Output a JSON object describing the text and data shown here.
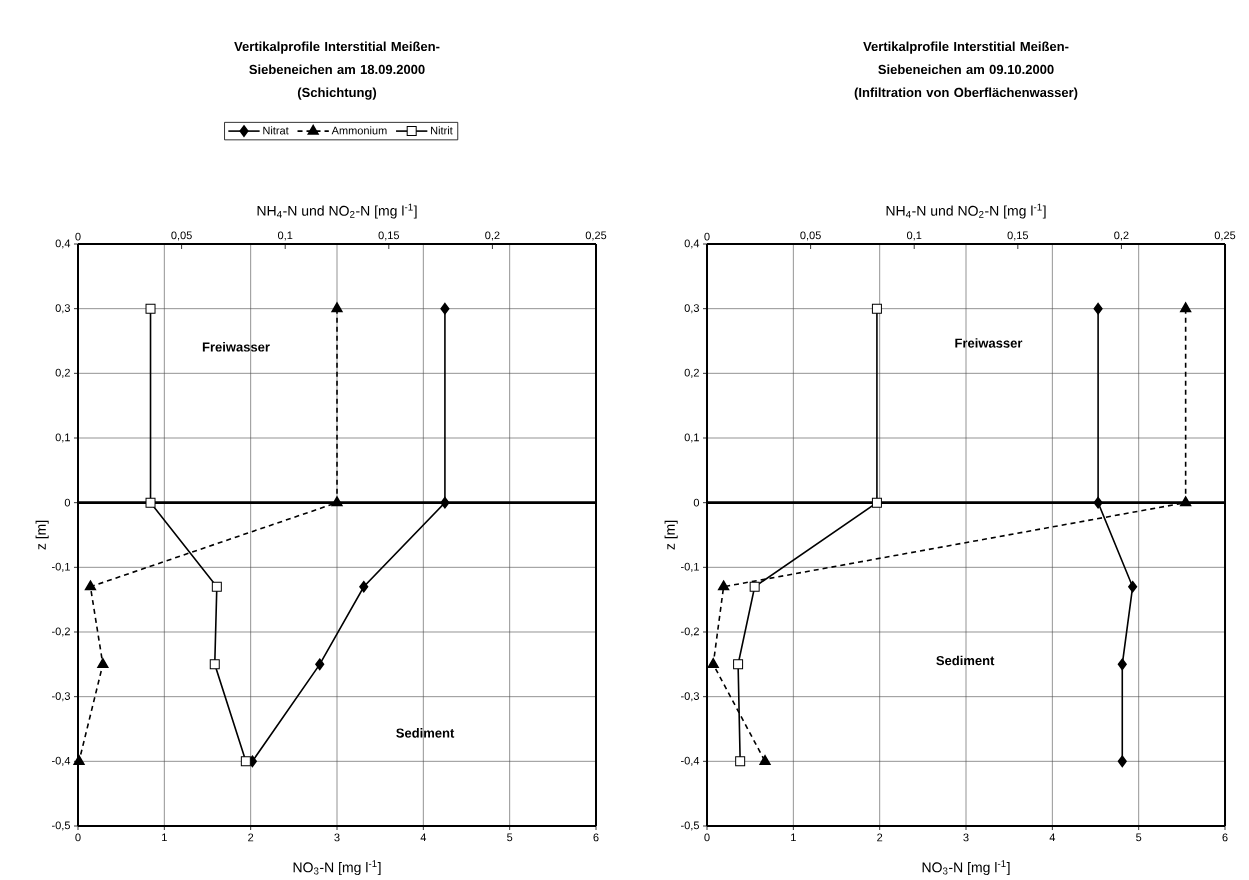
{
  "chart_data": [
    {
      "type": "line",
      "title": "Vertikalprofile Interstitial Meißen-Siebeneichen am 18.09.2000",
      "subtitle": "(Schichtung)",
      "xlabel": "NO$_{3}$-N  [mg l$^{-1}$]",
      "x2label": "NH$_{4}$-N und NO$_{2}$-N  [mg l$^{-1}$]",
      "ylabel": "z [m]",
      "xlim": [
        0,
        6
      ],
      "xticks": [
        0,
        1,
        2,
        3,
        4,
        5,
        6
      ],
      "x2lim": [
        0,
        0.25
      ],
      "x2ticks": [
        0,
        {
          "value": 0.05,
          "label": "0,05"
        },
        {
          "value": 0.1,
          "label": "0,1"
        },
        {
          "value": 0.15,
          "label": "0,15"
        },
        {
          "value": 0.2,
          "label": "0,2"
        },
        {
          "value": 0.25,
          "label": "0,25"
        }
      ],
      "ylim": [
        -0.5,
        0.4
      ],
      "yticks": [
        {
          "value": -0.5,
          "label": "-0,5"
        },
        {
          "value": -0.4,
          "label": "-0,4"
        },
        {
          "value": -0.3,
          "label": "-0,3"
        },
        {
          "value": -0.2,
          "label": "-0,2"
        },
        {
          "value": -0.1,
          "label": "-0,1"
        },
        0,
        {
          "value": 0.1,
          "label": "0,1"
        },
        {
          "value": 0.2,
          "label": "0,2"
        },
        {
          "value": 0.3,
          "label": "0,3"
        },
        {
          "value": 0.4,
          "label": "0,4"
        }
      ],
      "grid": true,
      "legend": "top",
      "ref_lines": [
        {
          "axis": "y",
          "value": 0
        }
      ],
      "annotations": [
        "Freiwasser",
        "Sediment"
      ],
      "series": [
        {
          "name": "Nitrat",
          "color": "#000000",
          "marker": "diamond",
          "line_style": "solid",
          "x": [
            4.25,
            4.25,
            3.31,
            2.8,
            2.02
          ],
          "values": [
            0.3,
            0,
            -0.13,
            -0.25,
            -0.4
          ]
        },
        {
          "name": "Ammonium",
          "color": "#000000",
          "marker": "triangle",
          "line_style": "dashed",
          "axis": "x2",
          "x": [
            0.125,
            0.125,
            0.006,
            0.012,
            0.0005
          ],
          "values": [
            0.3,
            0,
            -0.13,
            -0.25,
            -0.4
          ]
        },
        {
          "name": "Nitrit",
          "color": "#000000",
          "marker": "square",
          "line_style": "solid",
          "axis": "x2",
          "x": [
            0.035,
            0.035,
            0.067,
            0.066,
            0.081
          ],
          "values": [
            0.3,
            0,
            -0.13,
            -0.25,
            -0.4
          ]
        }
      ]
    },
    {
      "type": "line",
      "title": "Vertikalprofile Interstitial Meißen-Siebeneichen am 09.10.2000",
      "subtitle": "(Infiltration von Oberflächenwasser)",
      "xlabel": "NO$_{3}$-N  [mg l$^{-1}$]",
      "x2label": "NH$_{4}$-N und NO$_{2}$-N  [mg l$^{-1}$]",
      "ylabel": "z [m]",
      "xlim": [
        0,
        6
      ],
      "xticks": [
        0,
        1,
        2,
        3,
        4,
        5,
        6
      ],
      "x2lim": [
        0,
        0.25
      ],
      "x2ticks": [
        0,
        {
          "value": 0.05,
          "label": "0,05"
        },
        {
          "value": 0.1,
          "label": "0,1"
        },
        {
          "value": 0.15,
          "label": "0,15"
        },
        {
          "value": 0.2,
          "label": "0,2"
        },
        {
          "value": 0.25,
          "label": "0,25"
        }
      ],
      "ylim": [
        -0.5,
        0.4
      ],
      "yticks": [
        {
          "value": -0.5,
          "label": "-0,5"
        },
        {
          "value": -0.4,
          "label": "-0,4"
        },
        {
          "value": -0.3,
          "label": "-0,3"
        },
        {
          "value": -0.2,
          "label": "-0,2"
        },
        {
          "value": -0.1,
          "label": "-0,1"
        },
        0,
        {
          "value": 0.1,
          "label": "0,1"
        },
        {
          "value": 0.2,
          "label": "0,2"
        },
        {
          "value": 0.3,
          "label": "0,3"
        },
        {
          "value": 0.4,
          "label": "0,4"
        }
      ],
      "grid": true,
      "ref_lines": [
        {
          "axis": "y",
          "value": 0
        }
      ],
      "annotations": [
        "Freiwasser",
        "Sediment"
      ],
      "series": [
        {
          "color": "#000000",
          "marker": "diamond",
          "line_style": "solid",
          "x": [
            4.53,
            4.53,
            4.93,
            4.81,
            4.81
          ],
          "values": [
            0.3,
            0,
            -0.13,
            -0.25,
            -0.4
          ]
        },
        {
          "color": "#000000",
          "marker": "triangle",
          "line_style": "dashed",
          "axis": "x2",
          "x": [
            0.231,
            0.231,
            0.008,
            0.003,
            0.028
          ],
          "values": [
            0.3,
            0,
            -0.13,
            -0.25,
            -0.4
          ]
        },
        {
          "color": "#000000",
          "marker": "square",
          "line_style": "solid",
          "axis": "x2",
          "x": [
            0.082,
            0.082,
            0.023,
            0.015,
            0.016
          ],
          "values": [
            0.3,
            0,
            -0.13,
            -0.25,
            -0.4
          ]
        }
      ]
    }
  ]
}
